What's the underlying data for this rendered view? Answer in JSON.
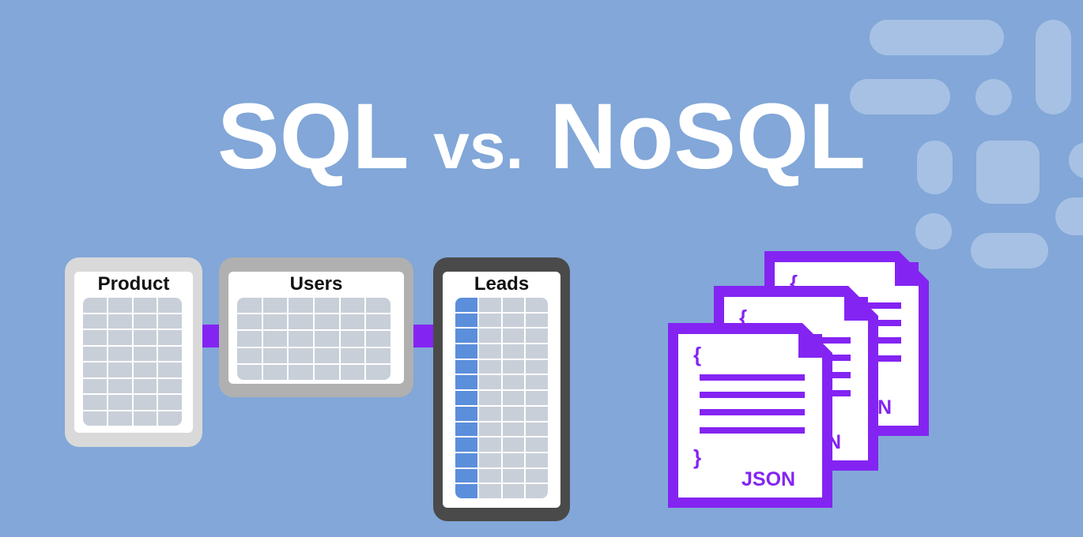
{
  "title": {
    "left": "SQL",
    "middle": "vs.",
    "right": "NoSQL"
  },
  "colors": {
    "background": "#82a7d8",
    "accent": "#8424f2",
    "key_column": "#5b8edb",
    "grid": "#c8cfd8"
  },
  "sql_tables": [
    {
      "name": "Product",
      "frame_color": "#d9d9d9",
      "columns": 4,
      "rows": 8
    },
    {
      "name": "Users",
      "frame_color": "#b0b0b0",
      "columns": 6,
      "rows": 5
    },
    {
      "name": "Leads",
      "frame_color": "#4a4a4a",
      "columns": 4,
      "rows": 13
    }
  ],
  "nosql_documents": [
    {
      "label": "JSON",
      "open_brace": "{",
      "close_brace": "}"
    },
    {
      "label": "JSON",
      "open_brace": "{",
      "close_brace": "}"
    },
    {
      "label": "JSON",
      "open_brace": "{",
      "close_brace": "}"
    }
  ]
}
